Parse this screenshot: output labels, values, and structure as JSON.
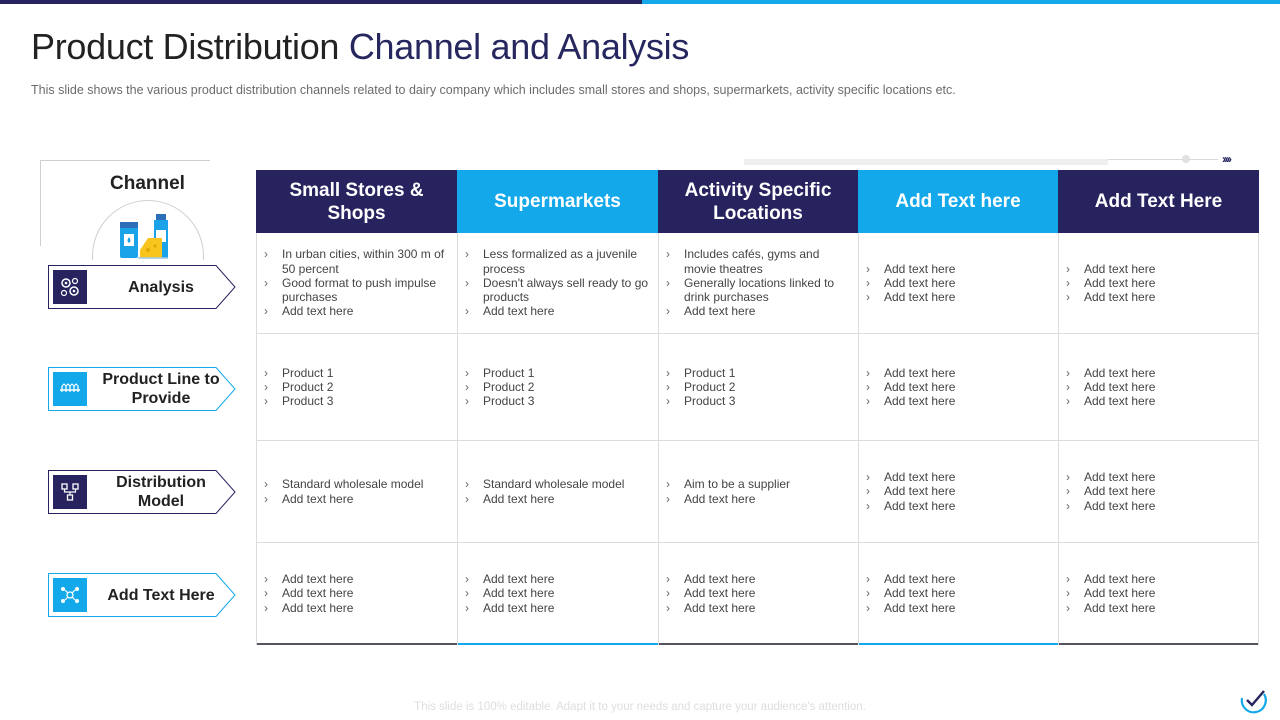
{
  "title": {
    "part1": "Product Distribution",
    "part2": "Channel and Analysis"
  },
  "subtitle": "This slide shows the various  product distribution channels related to dairy company which includes small stores and shops, supermarkets, activity specific locations etc.",
  "channel_label": "Channel",
  "arrows": "››››",
  "rows": [
    {
      "label": "Analysis",
      "icon": "gears-icon"
    },
    {
      "label": "Product Line to Provide",
      "icon": "product-line-icon"
    },
    {
      "label": "Distribution Model",
      "icon": "distribution-icon"
    },
    {
      "label": "Add Text Here",
      "icon": "network-icon"
    }
  ],
  "columns": [
    {
      "header": "Small Stores & Shops",
      "cells": [
        [
          "In urban cities, within 300 m of 50 percent",
          "Good format to push impulse purchases",
          "Add text here"
        ],
        [
          "Product 1",
          "Product 2",
          "Product 3"
        ],
        [
          "Standard wholesale model",
          "Add text here"
        ],
        [
          "Add text here",
          "Add text here",
          "Add text here"
        ]
      ]
    },
    {
      "header": "Supermarkets",
      "cells": [
        [
          "Less formalized as a juvenile process",
          "Doesn't always sell ready to go products",
          "Add text here"
        ],
        [
          "Product 1",
          "Product 2",
          "Product 3"
        ],
        [
          "Standard wholesale model",
          "Add text here"
        ],
        [
          "Add text here",
          "Add text here",
          "Add text here"
        ]
      ]
    },
    {
      "header": "Activity Specific Locations",
      "cells": [
        [
          "Includes cafés, gyms and movie theatres",
          "Generally locations linked to drink purchases",
          "Add text here"
        ],
        [
          "Product 1",
          "Product 2",
          "Product 3"
        ],
        [
          "Aim to be a supplier",
          "Add text here"
        ],
        [
          "Add text here",
          "Add text here",
          "Add text here"
        ]
      ]
    },
    {
      "header": "Add Text here",
      "cells": [
        [
          "Add text here",
          "Add text here",
          "Add text here"
        ],
        [
          "Add text here",
          "Add text here",
          "Add text here"
        ],
        [
          "Add text here",
          "Add text here",
          "Add text here"
        ],
        [
          "Add text here",
          "Add text here",
          "Add text here"
        ]
      ]
    },
    {
      "header": "Add Text Here",
      "cells": [
        [
          "Add text here",
          "Add text here",
          "Add text here"
        ],
        [
          "Add text here",
          "Add text here",
          "Add text here"
        ],
        [
          "Add text here",
          "Add text here",
          "Add text here"
        ],
        [
          "Add text here",
          "Add text here",
          "Add text here"
        ]
      ]
    }
  ],
  "footer": "This slide is 100% editable. Adapt it to your needs and capture your audience's attention.",
  "colors": {
    "dark": "#26235f",
    "light": "#12a8ea"
  }
}
